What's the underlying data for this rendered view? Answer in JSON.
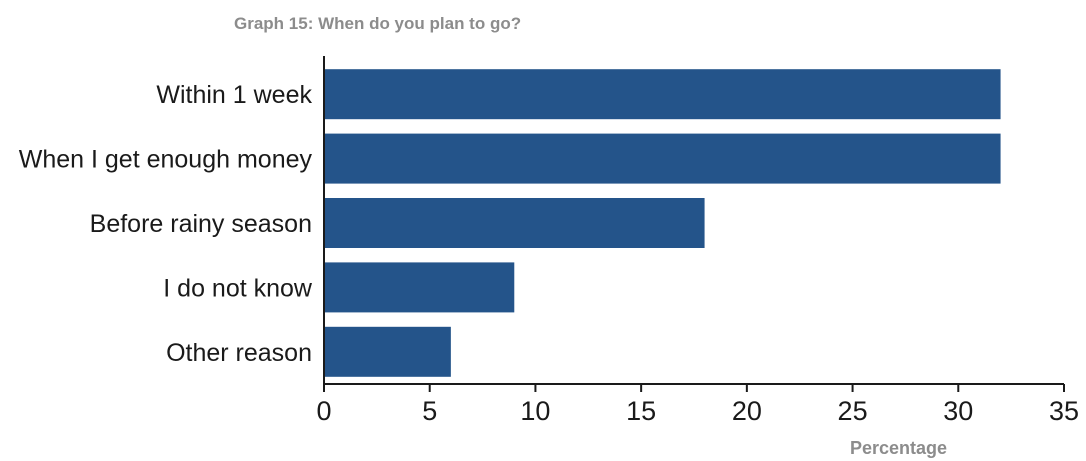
{
  "chart_data": {
    "type": "bar",
    "orientation": "horizontal",
    "title": "Graph 15: When do you plan to go?",
    "xlabel": "Percentage",
    "ylabel": "",
    "categories": [
      "Within 1 week",
      "When I get enough money",
      "Before rainy season",
      "I do not know",
      "Other reason"
    ],
    "values": [
      32,
      32,
      18,
      9,
      6
    ],
    "xlim": [
      0,
      35
    ],
    "xticks": [
      0,
      5,
      10,
      15,
      20,
      25,
      30,
      35
    ],
    "grid": false,
    "legend": "none",
    "bar_color": "#24548a",
    "axis_color": "#1a1a1a"
  }
}
